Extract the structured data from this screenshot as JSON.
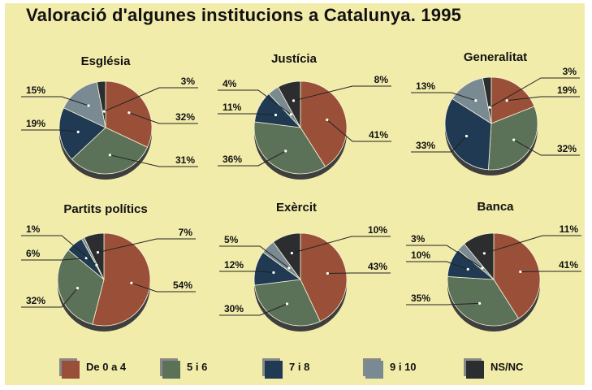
{
  "title": "Valoració d'algunes institucions a Catalunya. 1995",
  "colors": {
    "De 0 a 4": "#9a5038",
    "5 i 6": "#5b7258",
    "7 i 8": "#1f3a52",
    "9 i 10": "#7a8a92",
    "NS/NC": "#2c2d2e"
  },
  "legend": [
    {
      "label": "De 0 a 4",
      "color": "#9a5038"
    },
    {
      "label": "5 i 6",
      "color": "#5b7258"
    },
    {
      "label": "7 i 8",
      "color": "#1f3a52"
    },
    {
      "label": "9 i 10",
      "color": "#7a8a92"
    },
    {
      "label": "NS/NC",
      "color": "#2c2d2e"
    }
  ],
  "chart_data": [
    {
      "type": "pie",
      "title": "Església",
      "categories": [
        "De 0 a 4",
        "5 i 6",
        "7 i 8",
        "9 i 10",
        "NS/NC"
      ],
      "values": [
        32,
        31,
        19,
        15,
        3
      ],
      "labels": [
        "32%",
        "31%",
        "19%",
        "15%",
        "3%"
      ]
    },
    {
      "type": "pie",
      "title": "Justícia",
      "categories": [
        "De 0 a 4",
        "5 i 6",
        "7 i 8",
        "9 i 10",
        "NS/NC"
      ],
      "values": [
        41,
        36,
        11,
        4,
        8
      ],
      "labels": [
        "41%",
        "36%",
        "11%",
        "4%",
        "8%"
      ]
    },
    {
      "type": "pie",
      "title": "Generalitat",
      "categories": [
        "De 0 a 4",
        "5 i 6",
        "7 i 8",
        "9 i 10",
        "NS/NC"
      ],
      "values": [
        19,
        32,
        33,
        13,
        3
      ],
      "labels": [
        "19%",
        "32%",
        "33%",
        "13%",
        "3%"
      ]
    },
    {
      "type": "pie",
      "title": "Partits polítics",
      "categories": [
        "De 0 a 4",
        "5 i 6",
        "7 i 8",
        "9 i 10",
        "NS/NC"
      ],
      "values": [
        54,
        32,
        6,
        1,
        7
      ],
      "labels": [
        "54%",
        "32%",
        "6%",
        "1%",
        "7%"
      ]
    },
    {
      "type": "pie",
      "title": "Exèrcit",
      "categories": [
        "De 0 a 4",
        "5 i 6",
        "7 i 8",
        "9 i 10",
        "NS/NC"
      ],
      "values": [
        43,
        30,
        12,
        5,
        10
      ],
      "labels": [
        "43%",
        "30%",
        "12%",
        "5%",
        "10%"
      ]
    },
    {
      "type": "pie",
      "title": "Banca",
      "categories": [
        "De 0 a 4",
        "5 i 6",
        "7 i 8",
        "9 i 10",
        "NS/NC"
      ],
      "values": [
        41,
        35,
        10,
        3,
        11
      ],
      "labels": [
        "41%",
        "35%",
        "10%",
        "3%",
        "11%"
      ]
    }
  ]
}
